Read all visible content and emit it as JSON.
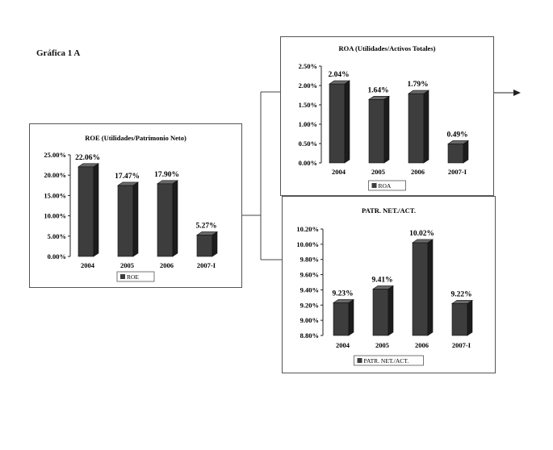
{
  "page_title": "Gráfica 1 A",
  "colors": {
    "bar_front": "#3d3d3d",
    "bar_top": "#6a6a6a",
    "bar_side": "#1c1c1c",
    "frame": "#555555"
  },
  "chart_data": [
    {
      "type": "bar",
      "title": "ROE (Utilidades/Patrimonio Neto)",
      "categories": [
        "2004",
        "2005",
        "2006",
        "2007-I"
      ],
      "series": [
        {
          "name": "ROE",
          "values": [
            22.06,
            17.47,
            17.9,
            5.27
          ]
        }
      ],
      "data_labels": [
        "22.06%",
        "17.47%",
        "17.90%",
        "5.27%"
      ],
      "y_ticks": [
        "25.00%",
        "20.00%",
        "15.00%",
        "10.00%",
        "5.00%",
        "0.00%"
      ],
      "ylim": [
        0,
        25
      ],
      "legend": "bottom"
    },
    {
      "type": "bar",
      "title": "ROA (Utilidades/Activos Totales)",
      "categories": [
        "2004",
        "2005",
        "2006",
        "2007-I"
      ],
      "series": [
        {
          "name": "ROA",
          "values": [
            2.04,
            1.64,
            1.79,
            0.49
          ]
        }
      ],
      "data_labels": [
        "2.04%",
        "1.64%",
        "1.79%",
        "0.49%"
      ],
      "y_ticks": [
        "2.50%",
        "2.00%",
        "1.50%",
        "1.00%",
        "0.50%",
        "0.00%"
      ],
      "ylim": [
        0,
        2.5
      ],
      "legend": "bottom"
    },
    {
      "type": "bar",
      "title": "PATR. NET./ACT.",
      "categories": [
        "2004",
        "2005",
        "2006",
        "2007-I"
      ],
      "series": [
        {
          "name": "PATR. NET./ACT.",
          "values": [
            9.23,
            9.41,
            10.02,
            9.22
          ]
        }
      ],
      "data_labels": [
        "9.23%",
        "9.41%",
        "10.02%",
        "9.22%"
      ],
      "y_ticks": [
        "10.20%",
        "10.00%",
        "9.80%",
        "9.60%",
        "9.40%",
        "9.20%",
        "9.00%",
        "8.80%"
      ],
      "ylim": [
        8.8,
        10.2
      ],
      "legend": "bottom"
    }
  ]
}
